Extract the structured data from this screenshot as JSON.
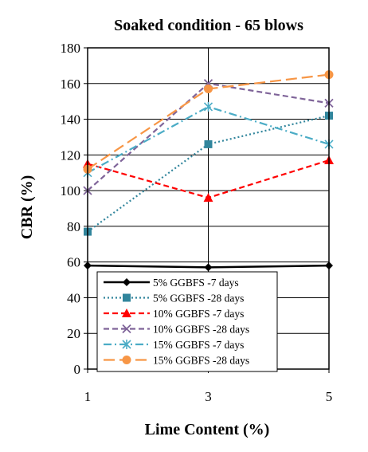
{
  "chart_data": {
    "type": "line",
    "title": "Soaked condition - 65 blows",
    "xlabel": "Lime Content (%)",
    "ylabel": "CBR (%)",
    "x": [
      1,
      3,
      5
    ],
    "x_tick_labels": [
      "1",
      "3",
      "5"
    ],
    "ylim": [
      0,
      180
    ],
    "y_ticks": [
      0,
      20,
      40,
      60,
      80,
      100,
      120,
      140,
      160,
      180
    ],
    "grid": true,
    "legend_placement": "bottom-center inside plot",
    "series": [
      {
        "name": "5% GGBFS -7 days",
        "values": [
          58,
          57,
          58
        ],
        "color": "#000000",
        "dash": "solid",
        "marker": "diamond"
      },
      {
        "name": "5% GGBFS -28 days",
        "values": [
          77,
          126,
          142
        ],
        "color": "#31859C",
        "dash": "dot",
        "marker": "square"
      },
      {
        "name": "10% GGBFS -7 days",
        "values": [
          115,
          96,
          117
        ],
        "color": "#FF0000",
        "dash": "dash",
        "marker": "triangle"
      },
      {
        "name": "10% GGBFS -28 days",
        "values": [
          100,
          160,
          149
        ],
        "color": "#7F6499",
        "dash": "dash",
        "marker": "x"
      },
      {
        "name": "15% GGBFS -7 days",
        "values": [
          110,
          147,
          126
        ],
        "color": "#4BACC6",
        "dash": "dashdot",
        "marker": "star"
      },
      {
        "name": "15% GGBFS -28 days",
        "values": [
          112,
          157,
          165
        ],
        "color": "#F79646",
        "dash": "longdash",
        "marker": "circle"
      }
    ]
  }
}
